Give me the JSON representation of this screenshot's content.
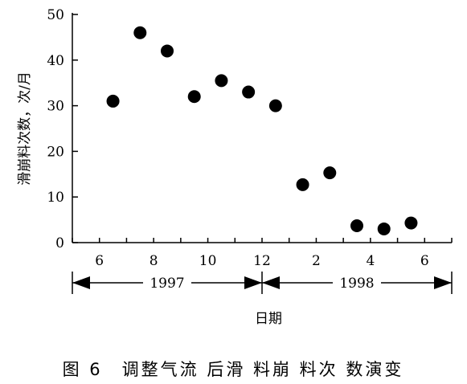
{
  "chart_data": {
    "type": "scatter",
    "title": "",
    "xlabel": "日期",
    "ylabel": "滑崩料次数，次/月",
    "ylim": [
      0,
      50
    ],
    "yticks": [
      "0",
      "10",
      "20",
      "30",
      "40",
      "50"
    ],
    "xticks": [
      {
        "month_index": 6,
        "label": "6"
      },
      {
        "month_index": 8,
        "label": "8"
      },
      {
        "month_index": 10,
        "label": "10"
      },
      {
        "month_index": 12,
        "label": "12"
      },
      {
        "month_index": 14,
        "label": "2"
      },
      {
        "month_index": 16,
        "label": "4"
      },
      {
        "month_index": 18,
        "label": "6"
      }
    ],
    "year_ranges": [
      {
        "label": "1997",
        "from_month_index": 5,
        "to_month_index": 12
      },
      {
        "label": "1998",
        "from_month_index": 12,
        "to_month_index": 19
      }
    ],
    "xlim": [
      5,
      19
    ],
    "points": [
      {
        "x": 6.5,
        "y": 31
      },
      {
        "x": 7.5,
        "y": 46
      },
      {
        "x": 8.5,
        "y": 42
      },
      {
        "x": 9.5,
        "y": 32
      },
      {
        "x": 10.5,
        "y": 35.5
      },
      {
        "x": 11.5,
        "y": 33
      },
      {
        "x": 12.5,
        "y": 30
      },
      {
        "x": 13.5,
        "y": 12.7
      },
      {
        "x": 14.5,
        "y": 15.3
      },
      {
        "x": 15.5,
        "y": 3.7
      },
      {
        "x": 16.5,
        "y": 3
      },
      {
        "x": 17.5,
        "y": 4.3
      }
    ],
    "legend": null,
    "grid": false
  },
  "caption": "图 6　调整气流 后滑 料崩 料次 数演变"
}
